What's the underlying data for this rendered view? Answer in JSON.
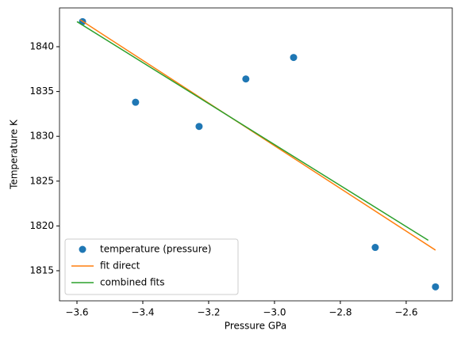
{
  "chart_data": {
    "type": "scatter",
    "xlabel": "Pressure GPa",
    "ylabel": "Temperature K",
    "xlim": [
      -3.653,
      -2.46
    ],
    "ylim": [
      1811.64,
      1844.33
    ],
    "xticks": [
      {
        "value": -3.6,
        "label": "−3.6"
      },
      {
        "value": -3.4,
        "label": "−3.4"
      },
      {
        "value": -3.2,
        "label": "−3.2"
      },
      {
        "value": -3.0,
        "label": "−3.0"
      },
      {
        "value": -2.8,
        "label": "−2.8"
      },
      {
        "value": -2.6,
        "label": "−2.6"
      }
    ],
    "yticks": [
      1815,
      1820,
      1825,
      1830,
      1835,
      1840
    ],
    "legend": "lower left",
    "series": [
      {
        "name": "temperature (pressure)",
        "color": "#1f77b4",
        "type": "scatter",
        "x": [
          -3.583,
          -3.422,
          -3.229,
          -3.087,
          -2.942,
          -2.694,
          -2.511
        ],
        "values": [
          1842.8,
          1833.8,
          1831.1,
          1836.4,
          1838.8,
          1817.6,
          1813.2
        ]
      },
      {
        "name": "fit direct",
        "color": "#ff7f0e",
        "type": "line",
        "x": [
          -3.59,
          -2.511
        ],
        "values": [
          1843.0,
          1817.3
        ]
      },
      {
        "name": "combined fits",
        "color": "#2ca02c",
        "type": "line",
        "x": [
          -3.6,
          -2.533
        ],
        "values": [
          1842.8,
          1818.4
        ]
      }
    ]
  }
}
